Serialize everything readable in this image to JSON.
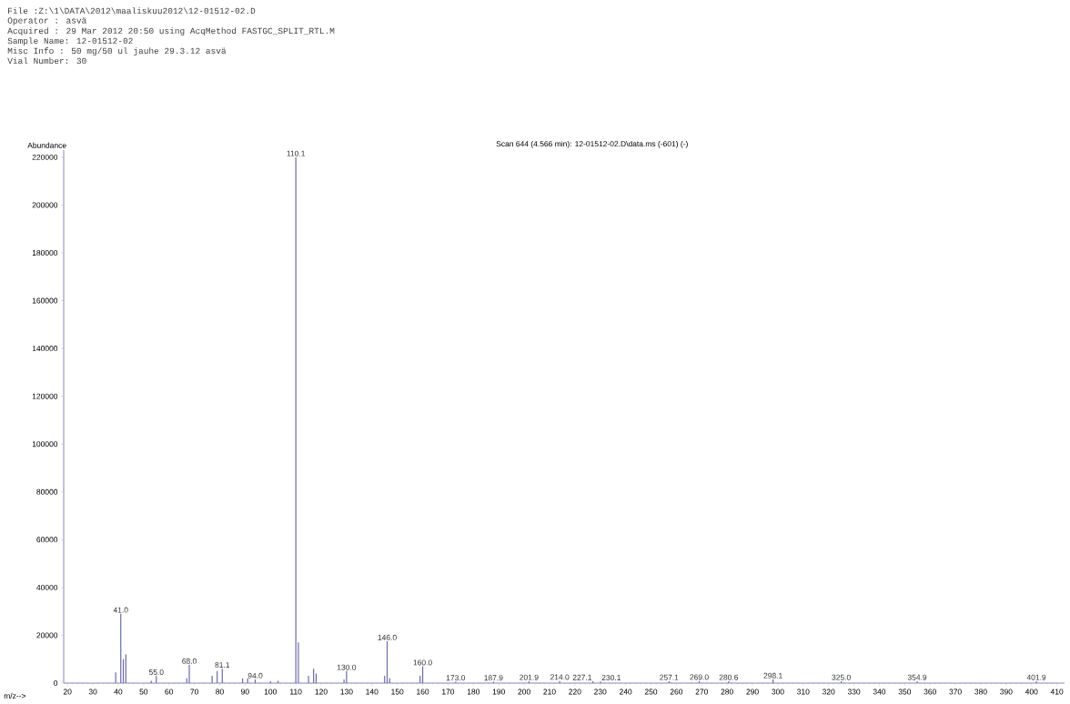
{
  "chart_data": {
    "type": "bar",
    "title": "Scan 644 (4.566 min): 12-01512-02.D\\data.ms (-601) (-)",
    "xlabel": "m/z-->",
    "ylabel": "Abundance",
    "x": [
      39,
      41,
      42,
      43,
      53,
      55,
      67,
      68,
      77,
      79,
      81,
      89,
      91,
      94,
      100,
      103,
      110,
      111,
      115,
      117,
      118,
      129,
      130,
      145,
      146,
      147,
      159,
      160,
      173,
      187.9,
      201.9,
      214,
      227.1,
      230.1,
      257.1,
      269,
      280.6,
      298.1,
      325,
      354.9,
      401.9
    ],
    "values": [
      4500,
      29000,
      10000,
      12000,
      1000,
      3000,
      2000,
      7600,
      3000,
      5000,
      6000,
      2000,
      2000,
      1500,
      800,
      1000,
      220000,
      17000,
      3000,
      6000,
      4000,
      1500,
      5000,
      3000,
      17500,
      2000,
      3000,
      7000,
      600,
      600,
      800,
      900,
      800,
      700,
      800,
      900,
      800,
      1500,
      800,
      800,
      800
    ],
    "color": "#6a6aa8",
    "xlim": [
      18.5,
      413
    ],
    "ylim": [
      0,
      223000
    ],
    "xticks": [
      20,
      30,
      40,
      50,
      60,
      70,
      80,
      90,
      100,
      110,
      120,
      130,
      140,
      150,
      160,
      170,
      180,
      190,
      200,
      210,
      220,
      230,
      240,
      250,
      260,
      270,
      280,
      290,
      300,
      310,
      320,
      330,
      340,
      350,
      360,
      370,
      380,
      390,
      400,
      410
    ],
    "yticks": [
      0,
      20000,
      40000,
      60000,
      80000,
      100000,
      120000,
      140000,
      160000,
      180000,
      200000,
      220000
    ],
    "grid": false,
    "annotations": [
      "File :Z:\\1\\DATA\\2012\\maaliskuu2012\\12-01512-02.D",
      "Operator : asvä",
      "Acquired : 29 Mar 2012 20:50 using AcqMethod FASTGC_SPLIT_RTL.M",
      "Sample Name: 12-01512-02",
      "Misc Info : 50 mg/50 ul jauhe 29.3.12 asvä",
      "Vial Number: 30",
      {
        "text": "41.0",
        "x": 41,
        "y": 29000
      },
      {
        "text": "55.0",
        "x": 55,
        "y": 3000
      },
      {
        "text": "68.0",
        "x": 68,
        "y": 7600
      },
      {
        "text": "81.1",
        "x": 81,
        "y": 6000
      },
      {
        "text": "94.0",
        "x": 94,
        "y": 1500
      },
      {
        "text": "110.1",
        "x": 110,
        "y": 220000
      },
      {
        "text": "130.0",
        "x": 130,
        "y": 5000
      },
      {
        "text": "146.0",
        "x": 146,
        "y": 17500
      },
      {
        "text": "160.0",
        "x": 160,
        "y": 7000
      },
      {
        "text": "173.0",
        "x": 173,
        "y": 600
      },
      {
        "text": "187.9",
        "x": 187.9,
        "y": 600
      },
      {
        "text": "201.9",
        "x": 201.9,
        "y": 800
      },
      {
        "text": "214.0",
        "x": 214,
        "y": 900
      },
      {
        "text": "227.1",
        "x": 227.1,
        "y": 800
      },
      {
        "text": "230.1",
        "x": 230.1,
        "y": 700
      },
      {
        "text": "257.1",
        "x": 257.1,
        "y": 800
      },
      {
        "text": "269.0",
        "x": 269,
        "y": 900
      },
      {
        "text": "280.6",
        "x": 280.6,
        "y": 800
      },
      {
        "text": "298.1",
        "x": 298.1,
        "y": 1500
      },
      {
        "text": "325.0",
        "x": 325,
        "y": 800
      },
      {
        "text": "354.9",
        "x": 354.9,
        "y": 800
      },
      {
        "text": "401.9",
        "x": 401.9,
        "y": 800
      }
    ]
  }
}
